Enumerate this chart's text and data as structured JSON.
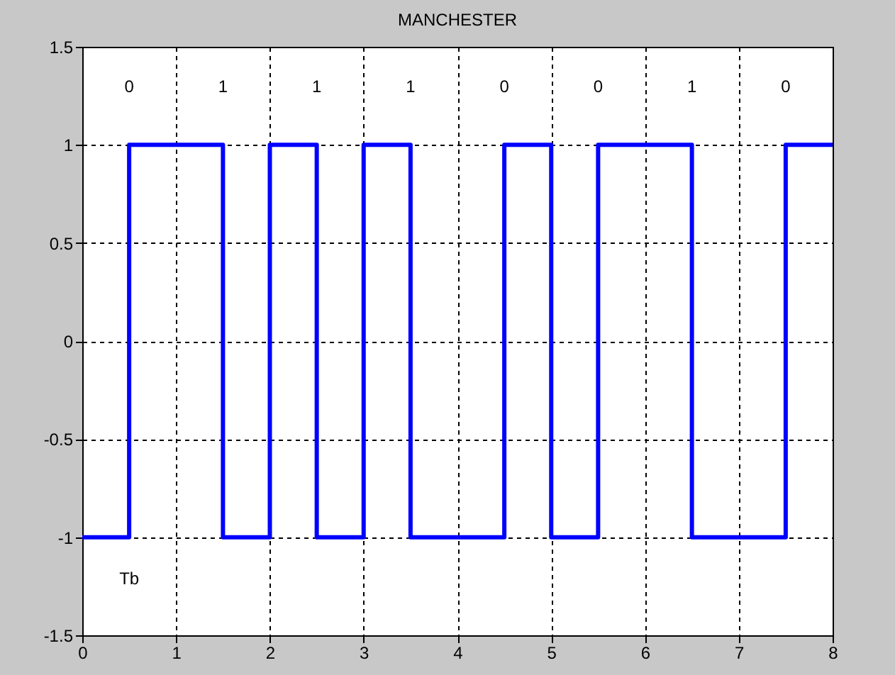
{
  "chart_data": {
    "type": "step",
    "title": "MANCHESTER",
    "x": [
      0,
      0.5,
      1.5,
      2,
      2.5,
      3,
      3.5,
      4.5,
      5,
      5.5,
      6.5,
      7.5,
      8
    ],
    "series": [
      {
        "color": "#0000ff",
        "values": [
          -1,
          1,
          -1,
          1,
          -1,
          1,
          -1,
          1,
          -1,
          1,
          -1,
          1,
          1
        ]
      }
    ],
    "xlim": [
      0,
      8
    ],
    "xticks": [
      0,
      1,
      2,
      3,
      4,
      5,
      6,
      7,
      8
    ],
    "ylim": [
      -1.5,
      1.5
    ],
    "yticks": [
      -1.5,
      -1,
      -0.5,
      0,
      0.5,
      1,
      1.5
    ],
    "grid": true,
    "marker": "none",
    "line_style": "solid",
    "annotations": [
      "0",
      "1",
      "1",
      "1",
      "0",
      "0",
      "1",
      "0",
      "Tb"
    ]
  }
}
